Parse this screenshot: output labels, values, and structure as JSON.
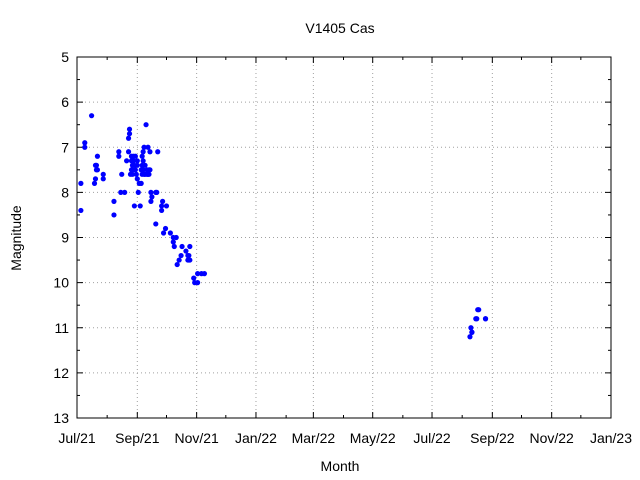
{
  "chart_data": {
    "type": "scatter",
    "title": "V1405 Cas",
    "xlabel": "Month",
    "ylabel": "Magnitude",
    "x_ticks": [
      "Jul/21",
      "Sep/21",
      "Nov/21",
      "Jan/22",
      "Mar/22",
      "May/22",
      "Jul/22",
      "Sep/22",
      "Nov/22",
      "Jan/23"
    ],
    "y_ticks": [
      "5",
      "6",
      "7",
      "8",
      "9",
      "10",
      "11",
      "12",
      "13"
    ],
    "xlim": [
      "2021-07-01",
      "2023-01-01"
    ],
    "ylim": [
      5,
      13
    ],
    "y_inverted": true,
    "grid": true,
    "marker_color": "#0000ff",
    "series": [
      {
        "x": [
          "2021-07-05",
          "2021-07-05",
          "2021-07-09",
          "2021-07-09",
          "2021-07-16",
          "2021-07-19",
          "2021-07-20",
          "2021-07-20",
          "2021-07-21",
          "2021-07-21",
          "2021-07-22",
          "2021-07-22",
          "2021-07-28",
          "2021-07-28",
          "2021-08-08",
          "2021-08-08",
          "2021-08-13",
          "2021-08-13",
          "2021-08-19",
          "2021-08-21",
          "2021-08-23",
          "2021-08-23",
          "2021-08-24",
          "2021-08-24",
          "2021-08-25",
          "2021-08-26",
          "2021-08-26",
          "2021-08-26",
          "2021-08-27",
          "2021-08-27",
          "2021-08-27",
          "2021-08-28",
          "2021-08-28",
          "2021-08-29",
          "2021-08-29",
          "2021-08-30",
          "2021-08-30",
          "2021-08-31",
          "2021-09-01",
          "2021-09-01",
          "2021-09-01",
          "2021-09-02",
          "2021-09-03",
          "2021-09-04",
          "2021-09-05",
          "2021-09-05",
          "2021-09-06",
          "2021-09-06",
          "2021-09-06",
          "2021-09-07",
          "2021-09-07",
          "2021-09-07",
          "2021-09-08",
          "2021-09-08",
          "2021-09-09",
          "2021-09-09",
          "2021-09-10",
          "2021-09-11",
          "2021-09-11",
          "2021-09-12",
          "2021-09-12",
          "2021-09-13",
          "2021-09-13",
          "2021-09-14",
          "2021-09-14",
          "2021-09-15",
          "2021-09-15",
          "2021-09-16",
          "2021-09-20",
          "2021-09-20",
          "2021-09-21",
          "2021-09-22",
          "2021-09-26",
          "2021-09-26",
          "2021-09-27",
          "2021-09-28",
          "2021-09-30",
          "2021-10-01",
          "2021-10-05",
          "2021-10-08",
          "2021-10-08",
          "2021-10-09",
          "2021-10-11",
          "2021-10-12",
          "2021-10-14",
          "2021-10-16",
          "2021-10-17",
          "2021-10-21",
          "2021-10-23",
          "2021-10-23",
          "2021-10-24",
          "2021-10-24",
          "2021-10-25",
          "2021-10-25",
          "2021-10-29",
          "2021-10-30",
          "2021-11-02",
          "2021-11-02",
          "2021-11-06",
          "2021-11-09",
          "2021-08-15",
          "2021-08-16"
        ],
        "y": [
          7.8,
          8.4,
          6.9,
          7.0,
          6.3,
          7.8,
          7.7,
          7.4,
          7.5,
          7.4,
          7.2,
          7.5,
          7.7,
          7.6,
          8.2,
          8.5,
          7.1,
          7.2,
          8.0,
          7.3,
          7.1,
          6.8,
          6.7,
          6.6,
          7.6,
          7.5,
          7.3,
          7.2,
          7.5,
          7.6,
          7.4,
          7.3,
          7.2,
          7.4,
          8.3,
          7.2,
          7.5,
          7.6,
          7.7,
          7.4,
          7.3,
          8.0,
          7.8,
          8.3,
          7.8,
          7.5,
          7.6,
          7.4,
          7.2,
          7.5,
          7.3,
          7.1,
          7.6,
          7.0,
          7.6,
          7.4,
          6.5,
          7.6,
          7.5,
          7.0,
          7.6,
          7.5,
          7.6,
          7.5,
          7.1,
          8.0,
          8.2,
          8.1,
          8.0,
          8.7,
          8.0,
          7.1,
          8.3,
          8.4,
          8.2,
          8.9,
          8.8,
          8.3,
          8.9,
          9.1,
          9.0,
          9.2,
          9.0,
          9.6,
          9.5,
          9.4,
          9.2,
          9.3,
          9.4,
          9.5,
          9.4,
          9.5,
          9.2,
          9.5,
          9.9,
          10.0,
          9.8,
          10.0,
          9.8,
          9.8,
          8.0,
          7.6
        ],
        "note": ""
      },
      {
        "x": [
          "2022-08-09",
          "2022-08-10",
          "2022-08-11",
          "2022-08-11",
          "2022-08-15",
          "2022-08-16",
          "2022-08-17",
          "2022-08-18",
          "2022-08-25",
          "2022-08-25"
        ],
        "y": [
          11.2,
          11.0,
          11.1,
          11.1,
          10.8,
          10.8,
          10.6,
          10.6,
          10.8,
          10.8
        ],
        "note": ""
      }
    ]
  }
}
